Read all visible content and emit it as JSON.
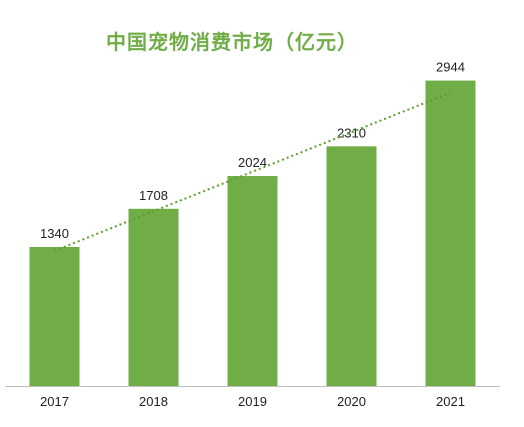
{
  "chart_data": {
    "type": "bar",
    "title": "中国宠物消费市场（亿元）",
    "categories": [
      "2017",
      "2018",
      "2019",
      "2020",
      "2021"
    ],
    "values": [
      1340,
      1708,
      2024,
      2310,
      2944
    ],
    "ylim": [
      0,
      3200
    ],
    "grid": false,
    "trendline": "linear",
    "colors": {
      "bar": "#70AD47",
      "trendline": "#5A9E2F",
      "axis": "#BFBFBF"
    }
  }
}
